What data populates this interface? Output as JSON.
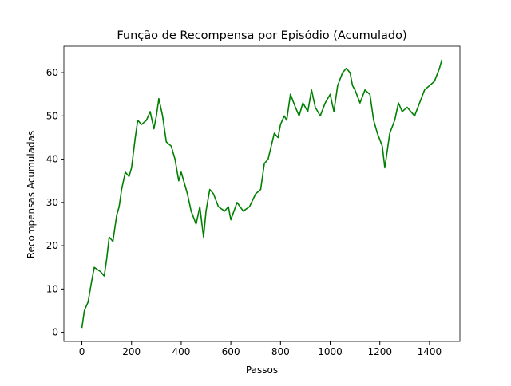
{
  "chart_data": {
    "type": "line",
    "title": "Função de Recompensa por Episódio (Acumulado)",
    "x_label": "Passos",
    "y_label": "Recompensas Acumuladas",
    "x": [
      0,
      10,
      25,
      40,
      50,
      75,
      90,
      100,
      110,
      125,
      140,
      150,
      160,
      175,
      190,
      200,
      215,
      225,
      240,
      260,
      275,
      290,
      300,
      310,
      325,
      340,
      360,
      375,
      390,
      400,
      425,
      440,
      460,
      475,
      490,
      500,
      515,
      530,
      550,
      575,
      590,
      600,
      625,
      650,
      675,
      700,
      720,
      735,
      750,
      775,
      790,
      800,
      815,
      825,
      840,
      860,
      875,
      890,
      910,
      925,
      940,
      960,
      980,
      1000,
      1015,
      1030,
      1050,
      1065,
      1080,
      1090,
      1100,
      1120,
      1140,
      1160,
      1175,
      1190,
      1210,
      1220,
      1240,
      1260,
      1275,
      1290,
      1310,
      1325,
      1340,
      1360,
      1380,
      1400,
      1420,
      1440,
      1450
    ],
    "series": [
      {
        "color": "#008000",
        "values": [
          1,
          5,
          7,
          12,
          15,
          14,
          13,
          17,
          22,
          21,
          27,
          29,
          33,
          37,
          36,
          38,
          45,
          49,
          48,
          49,
          51,
          47,
          50,
          54,
          50,
          44,
          43,
          40,
          35,
          37,
          32,
          28,
          25,
          29,
          22,
          28,
          33,
          32,
          29,
          28,
          29,
          26,
          30,
          28,
          29,
          32,
          33,
          39,
          40,
          46,
          45,
          48,
          50,
          49,
          55,
          52,
          50,
          53,
          51,
          56,
          52,
          50,
          53,
          55,
          51,
          57,
          60,
          61,
          60,
          57,
          56,
          53,
          56,
          55,
          49,
          46,
          43,
          38,
          46,
          49,
          53,
          51,
          52,
          51,
          50,
          53,
          56,
          57,
          58,
          61,
          63
        ]
      }
    ],
    "xlim": [
      -72.5,
      1522.5
    ],
    "ylim": [
      -2.1,
      66.1
    ],
    "xticks": [
      0,
      200,
      400,
      600,
      800,
      1000,
      1200,
      1400
    ],
    "yticks": [
      0,
      10,
      20,
      30,
      40,
      50,
      60
    ],
    "grid": false
  }
}
